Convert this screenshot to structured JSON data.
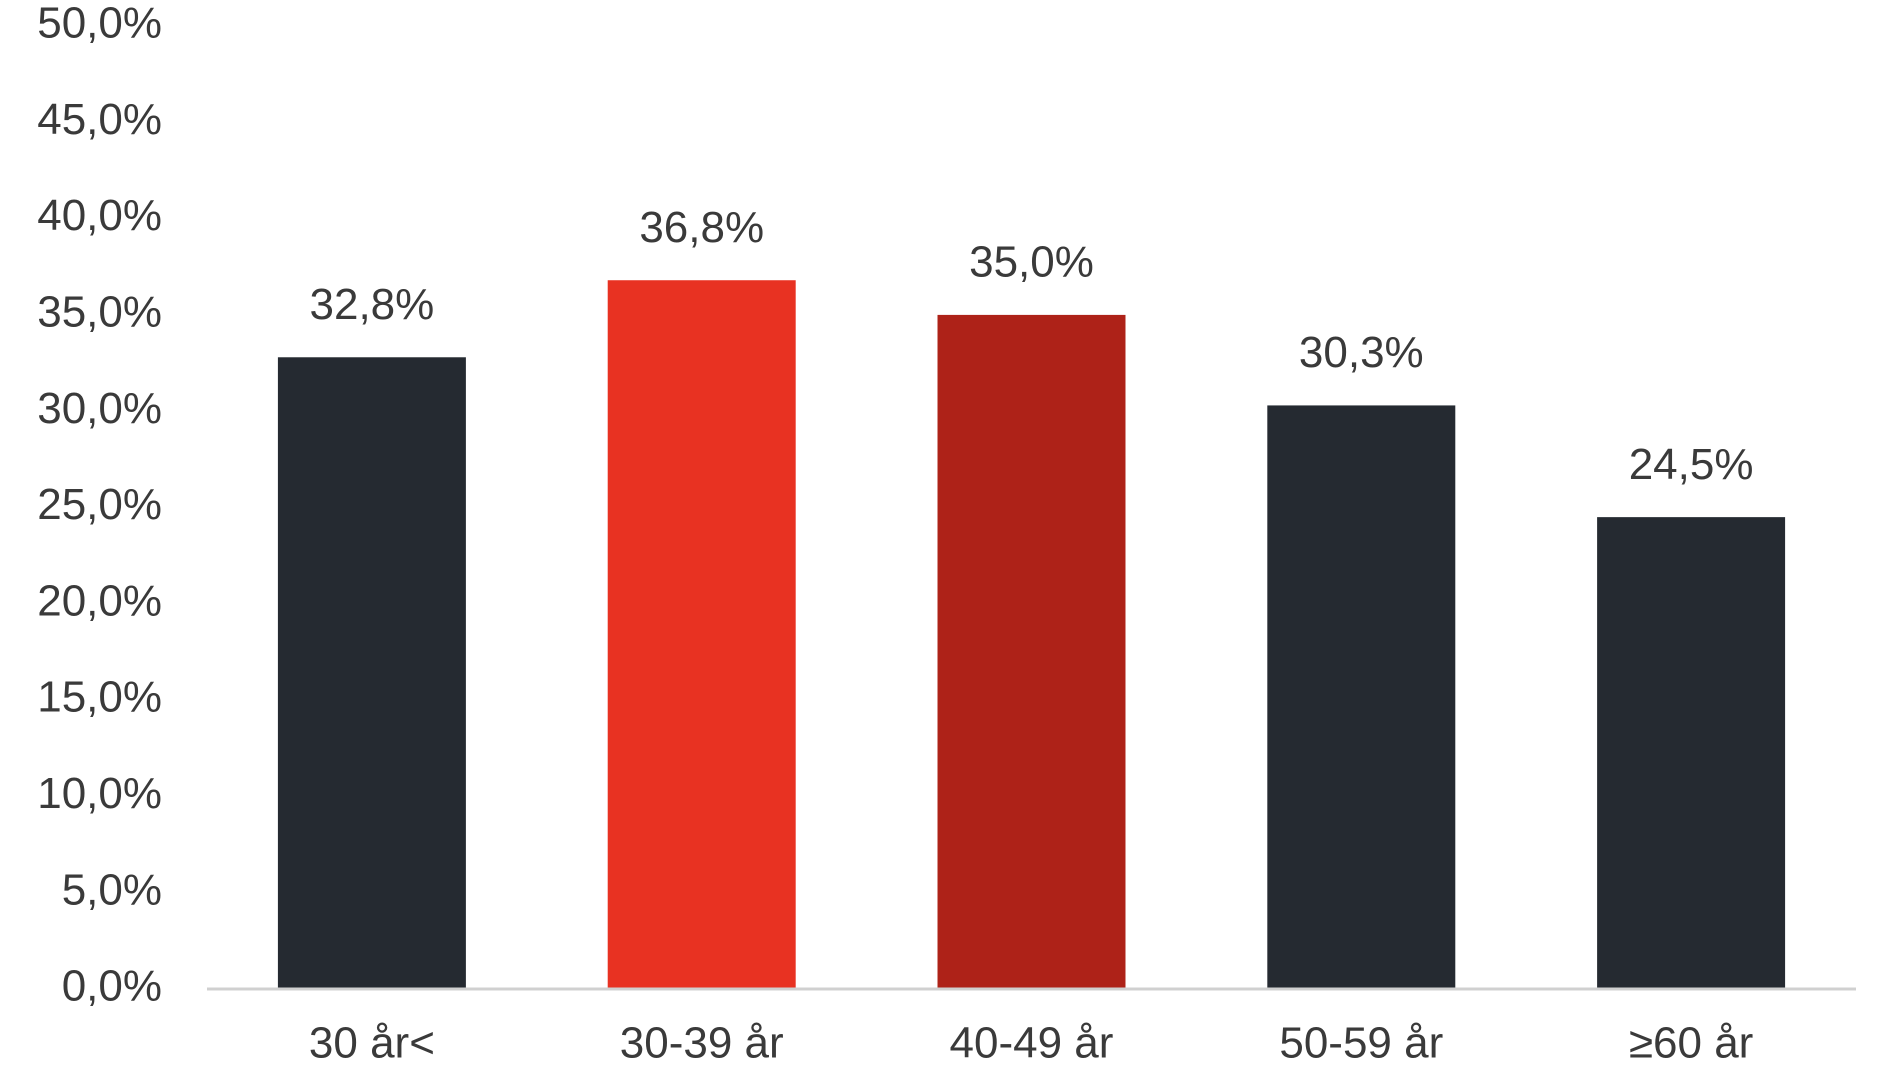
{
  "chart_data": {
    "type": "bar",
    "categories": [
      "30 år<",
      "30-39 år",
      "40-49 år",
      "50-59 år",
      "≥60 år"
    ],
    "values": [
      32.8,
      36.8,
      35.0,
      30.3,
      24.5
    ],
    "value_labels": [
      "32,8%",
      "36,8%",
      "35,0%",
      "30,3%",
      "24,5%"
    ],
    "colors": [
      "#252a31",
      "#e83222",
      "#ae2218",
      "#252a31",
      "#252a31"
    ],
    "ylim": [
      0,
      50
    ],
    "yticks": [
      {
        "value": 0,
        "label": "0,0%"
      },
      {
        "value": 5,
        "label": "5,0%"
      },
      {
        "value": 10,
        "label": "10,0%"
      },
      {
        "value": 15,
        "label": "15,0%"
      },
      {
        "value": 20,
        "label": "20,0%"
      },
      {
        "value": 25,
        "label": "25,0%"
      },
      {
        "value": 30,
        "label": "30,0%"
      },
      {
        "value": 35,
        "label": "35,0%"
      },
      {
        "value": 40,
        "label": "40,0%"
      },
      {
        "value": 45,
        "label": "45,0%"
      },
      {
        "value": 50,
        "label": "50,0%"
      }
    ],
    "grid": false
  }
}
